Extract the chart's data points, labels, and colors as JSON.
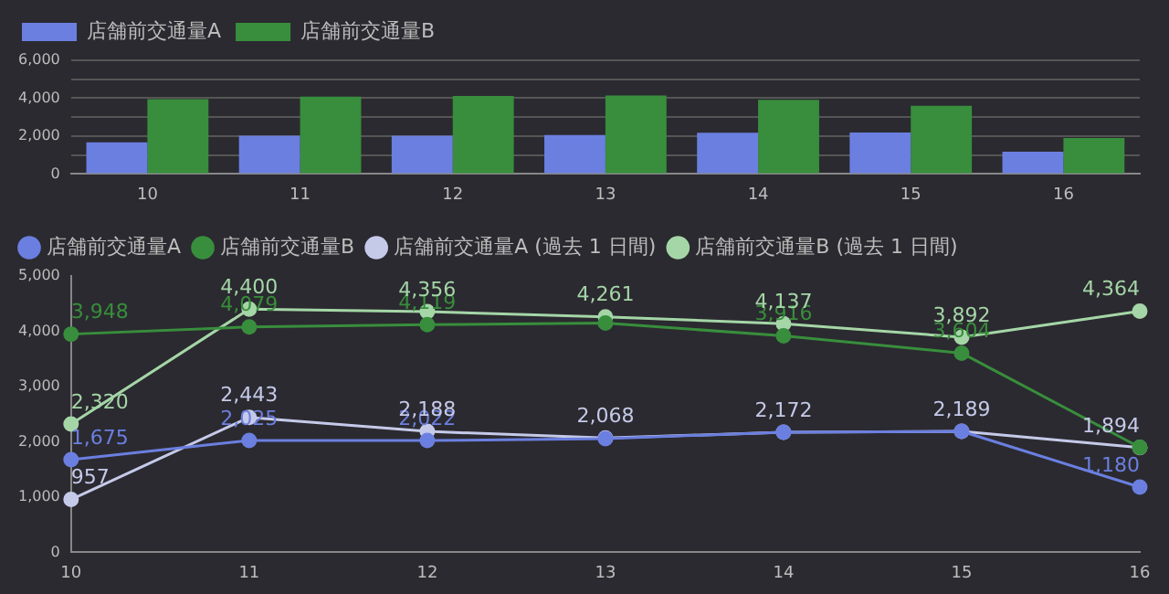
{
  "chart_data": [
    {
      "type": "bar",
      "categories": [
        "10",
        "11",
        "12",
        "13",
        "14",
        "15",
        "16"
      ],
      "series": [
        {
          "name": "店舗前交通量A",
          "color": "#6b7fe0",
          "values": [
            1675,
            2025,
            2022,
            2058,
            2172,
            2189,
            1180
          ]
        },
        {
          "name": "店舗前交通量B",
          "color": "#388e3c",
          "values": [
            3948,
            4079,
            4119,
            4149,
            3916,
            3604,
            1900
          ]
        }
      ],
      "ylim": [
        0,
        6000
      ],
      "yticks": [
        {
          "value": 0,
          "label": "0"
        },
        {
          "value": 1000,
          "label": null
        },
        {
          "value": 2000,
          "label": "2,000"
        },
        {
          "value": 3000,
          "label": null
        },
        {
          "value": 4000,
          "label": "4,000"
        },
        {
          "value": 5000,
          "label": null
        },
        {
          "value": 6000,
          "label": "6,000"
        }
      ],
      "grid": "y",
      "legend": "top left"
    },
    {
      "type": "line",
      "categories": [
        "10",
        "11",
        "12",
        "13",
        "14",
        "15",
        "16"
      ],
      "series": [
        {
          "name": "店舗前交通量A",
          "color": "#6b7fe0",
          "values": [
            1675,
            2025,
            2022,
            2058,
            2172,
            2189,
            1180
          ],
          "value_labels": [
            "1,675",
            "2,025",
            "2,022",
            null,
            null,
            null,
            "1,180"
          ]
        },
        {
          "name": "店舗前交通量B",
          "color": "#388e3c",
          "values": [
            3948,
            4079,
            4119,
            4149,
            3916,
            3604,
            1900
          ],
          "value_labels": [
            "3,948",
            "4,079",
            "4,119",
            null,
            "3,916",
            "3,604",
            null
          ]
        },
        {
          "name": "店舗前交通量A (過去 1 日間)",
          "color": "#c5cae9",
          "values": [
            957,
            2443,
            2188,
            2068,
            2172,
            2189,
            1894
          ],
          "value_labels": [
            "957",
            "2,443",
            "2,188",
            "2,068",
            "2,172",
            "2,189",
            "1,894"
          ]
        },
        {
          "name": "店舗前交通量B (過去 1 日間)",
          "color": "#a5d6a7",
          "values": [
            2320,
            4400,
            4356,
            4261,
            4137,
            3892,
            4364
          ],
          "value_labels": [
            "2,320",
            "4,400",
            "4,356",
            "4,261",
            "4,137",
            "3,892",
            "4,364"
          ]
        }
      ],
      "ylim": [
        0,
        5000
      ],
      "yticks": [
        {
          "value": 0,
          "label": "0"
        },
        {
          "value": 1000,
          "label": "1,000"
        },
        {
          "value": 2000,
          "label": "2,000"
        },
        {
          "value": 3000,
          "label": "3,000"
        },
        {
          "value": 4000,
          "label": "4,000"
        },
        {
          "value": 5000,
          "label": "5,000"
        }
      ],
      "grid": false,
      "legend": "top left",
      "marker": "circle",
      "line_style": "solid"
    }
  ]
}
